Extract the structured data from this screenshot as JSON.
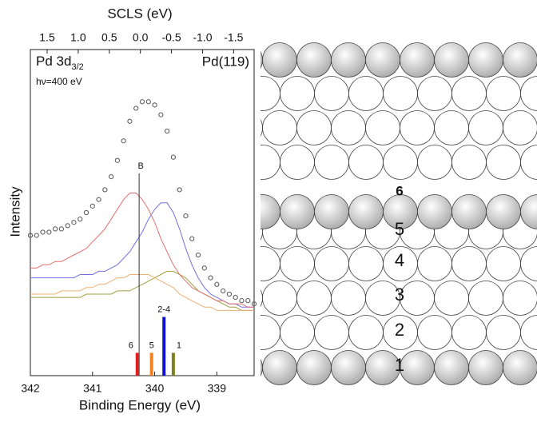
{
  "chart_data": {
    "type": "line",
    "x_label": "Binding Energy (eV)",
    "x2_label": "SCLS (eV)",
    "y_label": "Intensity",
    "xlim": [
      342,
      338.4
    ],
    "xticks": [
      342,
      341,
      340,
      339
    ],
    "x2lim": [
      1.77,
      -1.83
    ],
    "x2ticks": [
      1.5,
      {
        "value": 1,
        "label": "1.0"
      },
      0.5,
      {
        "value": 0,
        "label": "0.0"
      },
      -0.5,
      {
        "value": -1,
        "label": "-1.0"
      },
      -1.5
    ],
    "ylim": [
      0,
      100
    ],
    "x": [
      342.0,
      341.9,
      341.8,
      341.7,
      341.6,
      341.5,
      341.4,
      341.3,
      341.2,
      341.1,
      341.0,
      340.9,
      340.8,
      340.7,
      340.6,
      340.5,
      340.4,
      340.3,
      340.2,
      340.1,
      340.0,
      339.9,
      339.8,
      339.7,
      339.6,
      339.5,
      339.4,
      339.3,
      339.2,
      339.1,
      339.0,
      338.9,
      338.8,
      338.7,
      338.6,
      338.5,
      338.4
    ],
    "series": [
      {
        "style": "markers",
        "color": "#555555",
        "values": [
          43,
          43,
          44,
          44,
          45,
          45,
          46,
          47,
          48,
          50,
          52,
          54,
          57,
          61,
          66,
          72,
          78,
          82,
          84,
          84,
          83,
          80,
          75,
          67,
          57,
          49,
          42,
          37,
          33,
          30,
          28,
          26,
          25,
          24,
          23,
          23,
          22
        ]
      },
      {
        "style": "line",
        "color": "#e07070",
        "values": [
          33,
          33,
          34,
          34,
          35,
          35,
          36,
          37,
          38,
          39,
          41,
          43,
          45,
          48,
          51,
          54,
          56,
          56,
          54,
          51,
          47,
          42,
          38,
          34,
          31,
          29,
          27,
          26,
          25,
          24,
          23,
          23,
          22,
          22,
          22,
          21,
          21
        ]
      },
      {
        "style": "line",
        "color": "#7070e0",
        "values": [
          30,
          30,
          30,
          30,
          30,
          30,
          30,
          30,
          31,
          31,
          31,
          32,
          32,
          33,
          34,
          36,
          38,
          41,
          44,
          48,
          51,
          53,
          53,
          50,
          45,
          39,
          34,
          30,
          27,
          25,
          24,
          23,
          22,
          22,
          21,
          21,
          21
        ]
      },
      {
        "style": "line",
        "color": "#f0b070",
        "values": [
          25,
          25,
          25,
          25,
          25,
          26,
          26,
          26,
          26,
          27,
          27,
          28,
          28,
          29,
          30,
          30,
          31,
          31,
          31,
          31,
          30,
          29,
          28,
          27,
          25,
          24,
          23,
          22,
          21,
          21,
          20,
          20,
          20,
          20,
          20,
          20,
          20
        ]
      },
      {
        "style": "line",
        "color": "#a0a040",
        "values": [
          24,
          24,
          24,
          24,
          24,
          24,
          24,
          24,
          24,
          25,
          25,
          25,
          25,
          25,
          26,
          26,
          26,
          27,
          28,
          29,
          30,
          31,
          32,
          32,
          31,
          30,
          28,
          26,
          25,
          24,
          23,
          22,
          21,
          21,
          20,
          20,
          20
        ]
      }
    ],
    "sticks": {
      "x": [
        340.28,
        340.05,
        339.85,
        339.7
      ],
      "values": [
        7,
        7,
        18,
        7
      ],
      "labels": [
        "6",
        "5",
        "2-4",
        "1"
      ],
      "colors": [
        "#e02020",
        "#f08020",
        "#1010d0",
        "#808020"
      ]
    },
    "marker": {
      "label": "B",
      "x": 340.25,
      "y": 62
    },
    "annotations": {
      "element": "Pd 3d",
      "element_sub": "3/2",
      "photon": "hν=400 eV",
      "surface": "Pd(119)"
    }
  },
  "diagram": {
    "layer_labels": [
      "6",
      "5",
      "4",
      "3",
      "2",
      "1"
    ]
  }
}
